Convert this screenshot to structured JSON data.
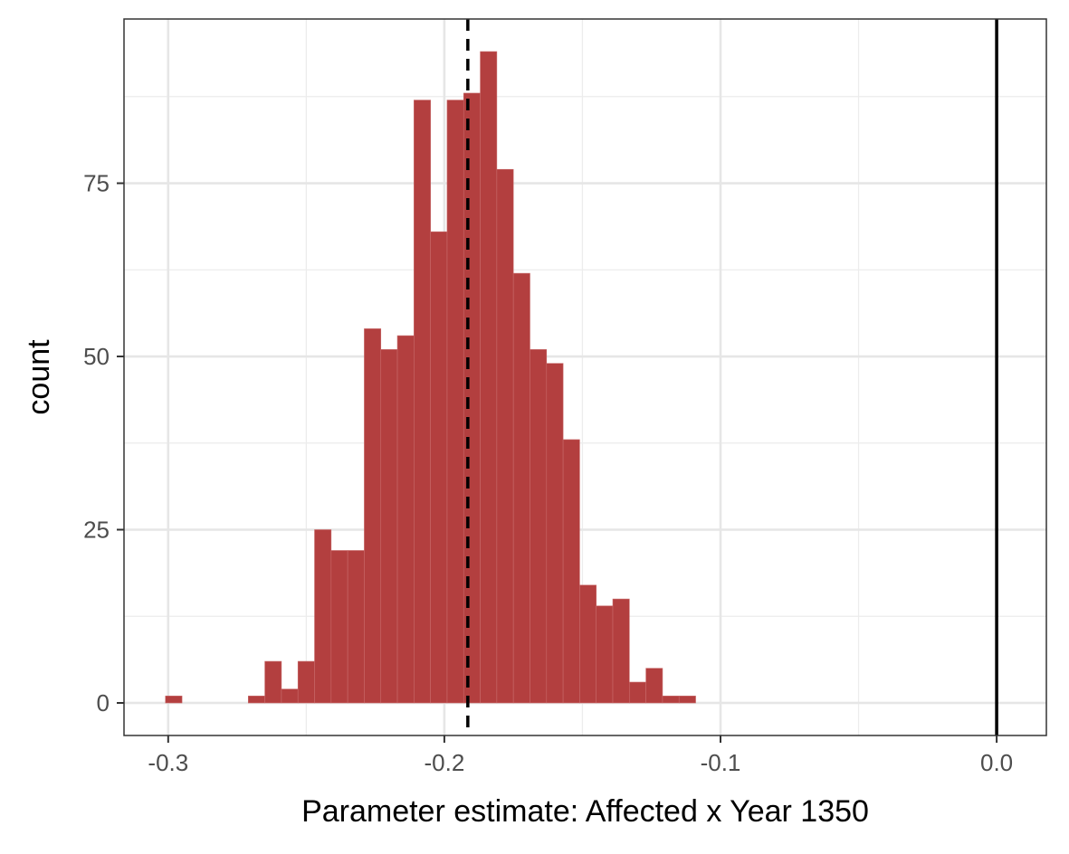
{
  "chart_data": {
    "type": "bar",
    "subtype": "histogram",
    "title": "",
    "xlabel": "Parameter estimate: Affected x Year 1350",
    "ylabel": "count",
    "xlim": [
      -0.316,
      0.018
    ],
    "ylim": [
      -4.7,
      98.7
    ],
    "x_ticks": [
      -0.3,
      -0.2,
      -0.1,
      0.0
    ],
    "x_tick_labels": [
      "-0.3",
      "-0.2",
      "-0.1",
      "0.0"
    ],
    "y_ticks": [
      0,
      25,
      50,
      75
    ],
    "y_tick_labels": [
      "0",
      "25",
      "50",
      "75"
    ],
    "bin_width": 0.006,
    "bins": [
      {
        "x0": -0.301,
        "count": 1
      },
      {
        "x0": -0.295,
        "count": 0
      },
      {
        "x0": -0.289,
        "count": 0
      },
      {
        "x0": -0.283,
        "count": 0
      },
      {
        "x0": -0.277,
        "count": 0
      },
      {
        "x0": -0.271,
        "count": 1
      },
      {
        "x0": -0.265,
        "count": 6
      },
      {
        "x0": -0.259,
        "count": 2
      },
      {
        "x0": -0.253,
        "count": 6
      },
      {
        "x0": -0.247,
        "count": 25
      },
      {
        "x0": -0.241,
        "count": 22
      },
      {
        "x0": -0.235,
        "count": 22
      },
      {
        "x0": -0.229,
        "count": 54
      },
      {
        "x0": -0.223,
        "count": 51
      },
      {
        "x0": -0.217,
        "count": 53
      },
      {
        "x0": -0.211,
        "count": 87
      },
      {
        "x0": -0.205,
        "count": 68
      },
      {
        "x0": -0.199,
        "count": 87
      },
      {
        "x0": -0.193,
        "count": 88
      },
      {
        "x0": -0.187,
        "count": 94
      },
      {
        "x0": -0.181,
        "count": 77
      },
      {
        "x0": -0.175,
        "count": 62
      },
      {
        "x0": -0.169,
        "count": 51
      },
      {
        "x0": -0.163,
        "count": 49
      },
      {
        "x0": -0.157,
        "count": 38
      },
      {
        "x0": -0.151,
        "count": 17
      },
      {
        "x0": -0.145,
        "count": 14
      },
      {
        "x0": -0.139,
        "count": 15
      },
      {
        "x0": -0.133,
        "count": 3
      },
      {
        "x0": -0.127,
        "count": 5
      },
      {
        "x0": -0.121,
        "count": 1
      },
      {
        "x0": -0.115,
        "count": 1
      }
    ],
    "reference_lines": [
      {
        "x": -0.1915,
        "style": "dashed",
        "color": "#000000"
      },
      {
        "x": 0.0,
        "style": "solid",
        "color": "#000000"
      }
    ],
    "bar_color": "#b33f3f",
    "grid": true,
    "legend": "none"
  }
}
